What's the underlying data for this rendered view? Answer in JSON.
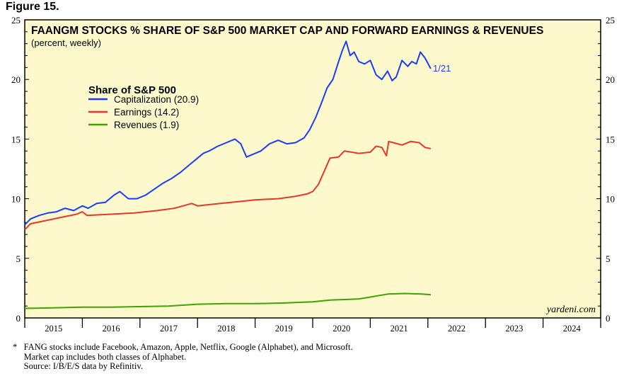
{
  "figure_label": "Figure 15.",
  "chart_data": {
    "type": "line",
    "title": "FAANGM STOCKS % SHARE OF S&P 500 MARKET CAP AND FORWARD EARNINGS & REVENUES",
    "subtitle": "(percent, weekly)",
    "legend_title": "Share of S&P 500",
    "legend_placement": "upper-left",
    "end_label": "1/21",
    "watermark": "yardeni.com",
    "xlim": [
      2015,
      2025
    ],
    "ylim": [
      0,
      25
    ],
    "y_ticks": [
      0,
      5,
      10,
      15,
      20,
      25
    ],
    "x_tick_labels": [
      "2015",
      "2016",
      "2017",
      "2018",
      "2019",
      "2020",
      "2021",
      "2022",
      "2023",
      "2024"
    ],
    "background_color": "#fdf9cc",
    "series": [
      {
        "name": "Capitalization (20.9)",
        "color": "#1a3cff",
        "x": [
          2015.0,
          2015.1,
          2015.25,
          2015.4,
          2015.55,
          2015.7,
          2015.85,
          2016.0,
          2016.1,
          2016.25,
          2016.4,
          2016.55,
          2016.65,
          2016.8,
          2016.95,
          2017.1,
          2017.25,
          2017.4,
          2017.55,
          2017.7,
          2017.85,
          2018.0,
          2018.1,
          2018.2,
          2018.35,
          2018.5,
          2018.65,
          2018.75,
          2018.85,
          2018.95,
          2019.1,
          2019.25,
          2019.4,
          2019.55,
          2019.7,
          2019.85,
          2019.95,
          2020.05,
          2020.15,
          2020.25,
          2020.35,
          2020.45,
          2020.52,
          2020.58,
          2020.65,
          2020.72,
          2020.8,
          2020.9,
          2021.0,
          2021.1,
          2021.2,
          2021.3,
          2021.38,
          2021.45,
          2021.55,
          2021.65,
          2021.72,
          2021.8,
          2021.87,
          2021.95,
          2022.05
        ],
        "y": [
          7.8,
          8.3,
          8.6,
          8.8,
          8.9,
          9.2,
          9.0,
          9.4,
          9.2,
          9.6,
          9.7,
          10.3,
          10.6,
          10.0,
          10.0,
          10.3,
          10.8,
          11.3,
          11.7,
          12.2,
          12.8,
          13.4,
          13.8,
          14.0,
          14.4,
          14.7,
          15.0,
          14.6,
          13.5,
          13.7,
          14.0,
          14.6,
          14.9,
          14.6,
          14.7,
          15.1,
          15.8,
          16.8,
          18.0,
          19.3,
          20.0,
          21.5,
          22.5,
          23.2,
          22.0,
          22.3,
          21.5,
          21.3,
          21.6,
          20.4,
          20.0,
          20.7,
          19.9,
          20.2,
          21.6,
          21.1,
          21.5,
          21.3,
          22.3,
          21.8,
          20.9
        ]
      },
      {
        "name": "Earnings (14.2)",
        "color": "#e8372c",
        "x": [
          2015.0,
          2015.1,
          2015.3,
          2015.6,
          2015.9,
          2016.0,
          2016.08,
          2016.5,
          2016.9,
          2017.3,
          2017.6,
          2017.9,
          2018.0,
          2018.4,
          2018.8,
          2019.0,
          2019.4,
          2019.7,
          2019.9,
          2020.0,
          2020.1,
          2020.2,
          2020.3,
          2020.45,
          2020.55,
          2020.8,
          2021.0,
          2021.1,
          2021.2,
          2021.28,
          2021.32,
          2021.4,
          2021.55,
          2021.7,
          2021.85,
          2021.95,
          2022.05
        ],
        "y": [
          7.4,
          7.9,
          8.1,
          8.4,
          8.7,
          8.9,
          8.6,
          8.7,
          8.8,
          9.0,
          9.2,
          9.6,
          9.4,
          9.6,
          9.8,
          9.9,
          10.0,
          10.2,
          10.4,
          10.6,
          11.2,
          12.3,
          13.4,
          13.5,
          14.0,
          13.8,
          13.9,
          14.4,
          14.3,
          13.6,
          14.8,
          14.7,
          14.5,
          14.8,
          14.7,
          14.3,
          14.2
        ]
      },
      {
        "name": "Revenues (1.9)",
        "color": "#3fa300",
        "x": [
          2015.0,
          2015.5,
          2016.0,
          2016.5,
          2017.0,
          2017.5,
          2018.0,
          2018.5,
          2019.0,
          2019.5,
          2020.0,
          2020.3,
          2020.6,
          2020.8,
          2021.0,
          2021.3,
          2021.6,
          2021.9,
          2022.05
        ],
        "y": [
          0.8,
          0.85,
          0.9,
          0.9,
          0.95,
          1.0,
          1.15,
          1.2,
          1.2,
          1.25,
          1.35,
          1.5,
          1.55,
          1.6,
          1.75,
          2.0,
          2.05,
          2.0,
          1.95
        ]
      }
    ]
  },
  "notes": {
    "line1": "*   FANG stocks include Facebook, Amazon, Apple, Netflix, Google (Alphabet), and Microsoft.",
    "line2": "     Market cap includes both classes of Alphabet.",
    "line3": "     Source: I/B/E/S data by Refinitiv."
  }
}
